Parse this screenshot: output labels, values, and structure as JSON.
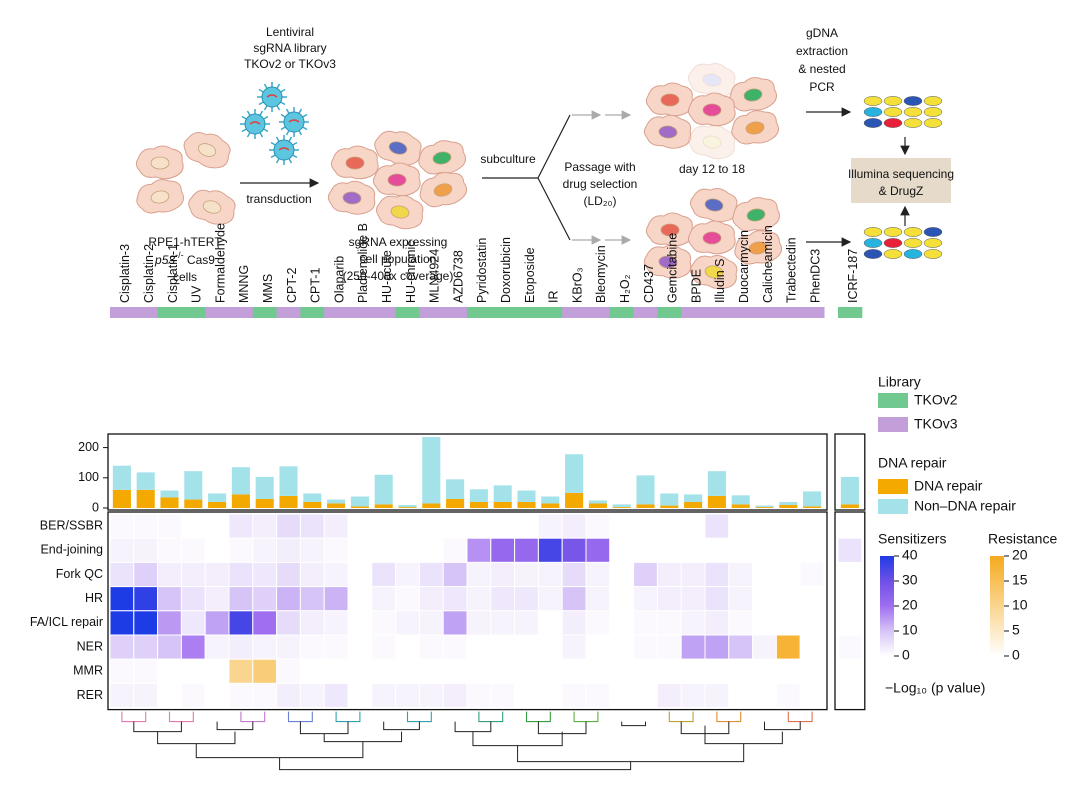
{
  "schematic": {
    "library": [
      "Lentiviral",
      "sgRNA library",
      "TKOv2 or TKOv3"
    ],
    "transduction": "transduction",
    "cells_label": {
      "line1": "RPE1-hTERT",
      "gene": "p53",
      "genotype": "-/-",
      "line2_rest": " Cas9",
      "line3": "cells"
    },
    "population": [
      "sgRNA expressing",
      "cell population",
      "(250-400x coverage)"
    ],
    "subculture": "subculture",
    "passage": [
      "Passage with",
      "drug selection",
      "(LD₂₀)"
    ],
    "day": "day 12 to 18",
    "gdna": [
      "gDNA",
      "extraction",
      "& nested",
      "PCR"
    ],
    "sequencing": [
      "Illumina sequencing",
      "& DrugZ"
    ]
  },
  "chart_data": {
    "type": "heatmap",
    "columns": [
      "Cisplatin-3",
      "Cisplatin-2",
      "Cisplatin-1",
      "UV",
      "Formaldehyde",
      "MNNG",
      "MMS",
      "CPT-2",
      "CPT-1",
      "Olaparib",
      "Pladienolide B",
      "HU-acute",
      "HU-chronic",
      "MLN4924",
      "AZD6738",
      "Pyridostatin",
      "Doxorubicin",
      "Etoposide",
      "IR",
      "KBrO₃",
      "Bleomycin",
      "H₂O₂",
      "CD437",
      "Gemcitabine",
      "BPDE",
      "Illudin S",
      "Duocarmycin",
      "Calicheamicin",
      "Trabectedin",
      "PhenDC3",
      "ICRF-187"
    ],
    "library": [
      "TKOv3",
      "TKOv3",
      "TKOv2",
      "TKOv2",
      "TKOv3",
      "TKOv3",
      "TKOv2",
      "TKOv3",
      "TKOv2",
      "TKOv3",
      "TKOv3",
      "TKOv3",
      "TKOv2",
      "TKOv3",
      "TKOv3",
      "TKOv2",
      "TKOv2",
      "TKOv2",
      "TKOv2",
      "TKOv3",
      "TKOv3",
      "TKOv2",
      "TKOv3",
      "TKOv2",
      "TKOv3",
      "TKOv3",
      "TKOv3",
      "TKOv3",
      "TKOv3",
      "TKOv3",
      "TKOv2"
    ],
    "library_title": "Library",
    "library_legend": [
      {
        "name": "TKOv2",
        "color": "#72c98f"
      },
      {
        "name": "TKOv3",
        "color": "#c29fd8"
      }
    ],
    "bar_legend_title": "DNA repair",
    "ylim": [
      0,
      245
    ],
    "yticks": [
      0,
      100,
      200
    ],
    "bar_series": [
      {
        "name": "DNA repair",
        "color": "#f4a900",
        "values": [
          60,
          60,
          35,
          28,
          20,
          45,
          30,
          40,
          20,
          15,
          5,
          12,
          3,
          15,
          30,
          20,
          20,
          20,
          15,
          50,
          15,
          3,
          12,
          8,
          20,
          40,
          12,
          3,
          10,
          5,
          12
        ]
      },
      {
        "name": "Non–DNA repair",
        "color": "#a4e2ea",
        "values": [
          80,
          58,
          23,
          94,
          28,
          90,
          73,
          98,
          28,
          13,
          33,
          98,
          7,
          220,
          65,
          42,
          55,
          38,
          23,
          128,
          10,
          9,
          96,
          40,
          25,
          82,
          30,
          5,
          10,
          50,
          91
        ]
      }
    ],
    "rows": [
      {
        "name": "BER/SSBR",
        "values": [
          1,
          1,
          1,
          0,
          0,
          4,
          3,
          6,
          5,
          3,
          0,
          0,
          0,
          0,
          0,
          0,
          0,
          0,
          2,
          3,
          1,
          0,
          0,
          0,
          0,
          5,
          0,
          0,
          0,
          0,
          0
        ]
      },
      {
        "name": "End-joining",
        "values": [
          2,
          2,
          1,
          1,
          0,
          1,
          2,
          3,
          2,
          1,
          0,
          0,
          0,
          0,
          1,
          16,
          22,
          22,
          35,
          28,
          22,
          0,
          0,
          0,
          0,
          0,
          0,
          0,
          0,
          0,
          5
        ]
      },
      {
        "name": "Fork QC",
        "values": [
          5,
          8,
          3,
          3,
          3,
          5,
          4,
          6,
          3,
          2,
          0,
          5,
          2,
          5,
          10,
          2,
          3,
          2,
          2,
          6,
          2,
          0,
          8,
          3,
          3,
          5,
          2,
          0,
          0,
          1,
          0
        ]
      },
      {
        "name": "HR",
        "values": [
          40,
          38,
          10,
          5,
          3,
          10,
          8,
          12,
          10,
          12,
          0,
          2,
          1,
          3,
          4,
          2,
          4,
          4,
          2,
          10,
          2,
          0,
          2,
          3,
          3,
          5,
          2,
          0,
          0,
          0,
          0
        ]
      },
      {
        "name": "FA/ICL repair",
        "values": [
          40,
          40,
          15,
          4,
          14,
          35,
          20,
          6,
          3,
          2,
          0,
          1,
          2,
          2,
          14,
          2,
          2,
          2,
          0,
          3,
          1,
          0,
          1,
          1,
          2,
          3,
          1,
          0,
          0,
          0,
          0
        ]
      },
      {
        "name": "NER",
        "values": [
          8,
          8,
          10,
          18,
          2,
          3,
          2,
          2,
          1,
          1,
          0,
          1,
          0,
          1,
          1,
          0,
          0,
          0,
          0,
          2,
          0,
          0,
          1,
          1,
          14,
          14,
          10,
          2,
          0,
          0,
          1
        ],
        "resistance": [
          0,
          0,
          0,
          0,
          0,
          0,
          0,
          0,
          0,
          0,
          0,
          0,
          0,
          0,
          0,
          0,
          0,
          0,
          0,
          0,
          0,
          0,
          0,
          0,
          0,
          0,
          0,
          0,
          18,
          0,
          0
        ]
      },
      {
        "name": "MMR",
        "values": [
          1,
          1,
          0,
          0,
          0,
          0,
          0,
          1,
          0,
          0,
          0,
          0,
          0,
          0,
          0,
          0,
          0,
          0,
          0,
          0,
          0,
          0,
          0,
          0,
          0,
          0,
          0,
          0,
          0,
          0,
          0
        ],
        "resistance": [
          0,
          0,
          0,
          0,
          0,
          10,
          12,
          0,
          0,
          0,
          0,
          0,
          0,
          0,
          0,
          0,
          0,
          0,
          0,
          0,
          0,
          0,
          0,
          0,
          0,
          0,
          0,
          0,
          0,
          0,
          0
        ]
      },
      {
        "name": "RER",
        "values": [
          2,
          2,
          0,
          1,
          0,
          1,
          1,
          3,
          2,
          4,
          0,
          2,
          2,
          2,
          3,
          1,
          1,
          0,
          0,
          1,
          1,
          0,
          0,
          3,
          2,
          2,
          0,
          0,
          1,
          0,
          0
        ]
      }
    ],
    "sensitizer_scale": {
      "title": "Sensitizers",
      "lim": [
        0,
        40
      ],
      "ticks": [
        0,
        10,
        20,
        30,
        40
      ]
    },
    "resistance_scale": {
      "title": "Resistance",
      "lim": [
        0,
        20
      ],
      "ticks": [
        0,
        5,
        10,
        15,
        20
      ]
    },
    "scale_label": "−Log₁₀ (p value)"
  }
}
